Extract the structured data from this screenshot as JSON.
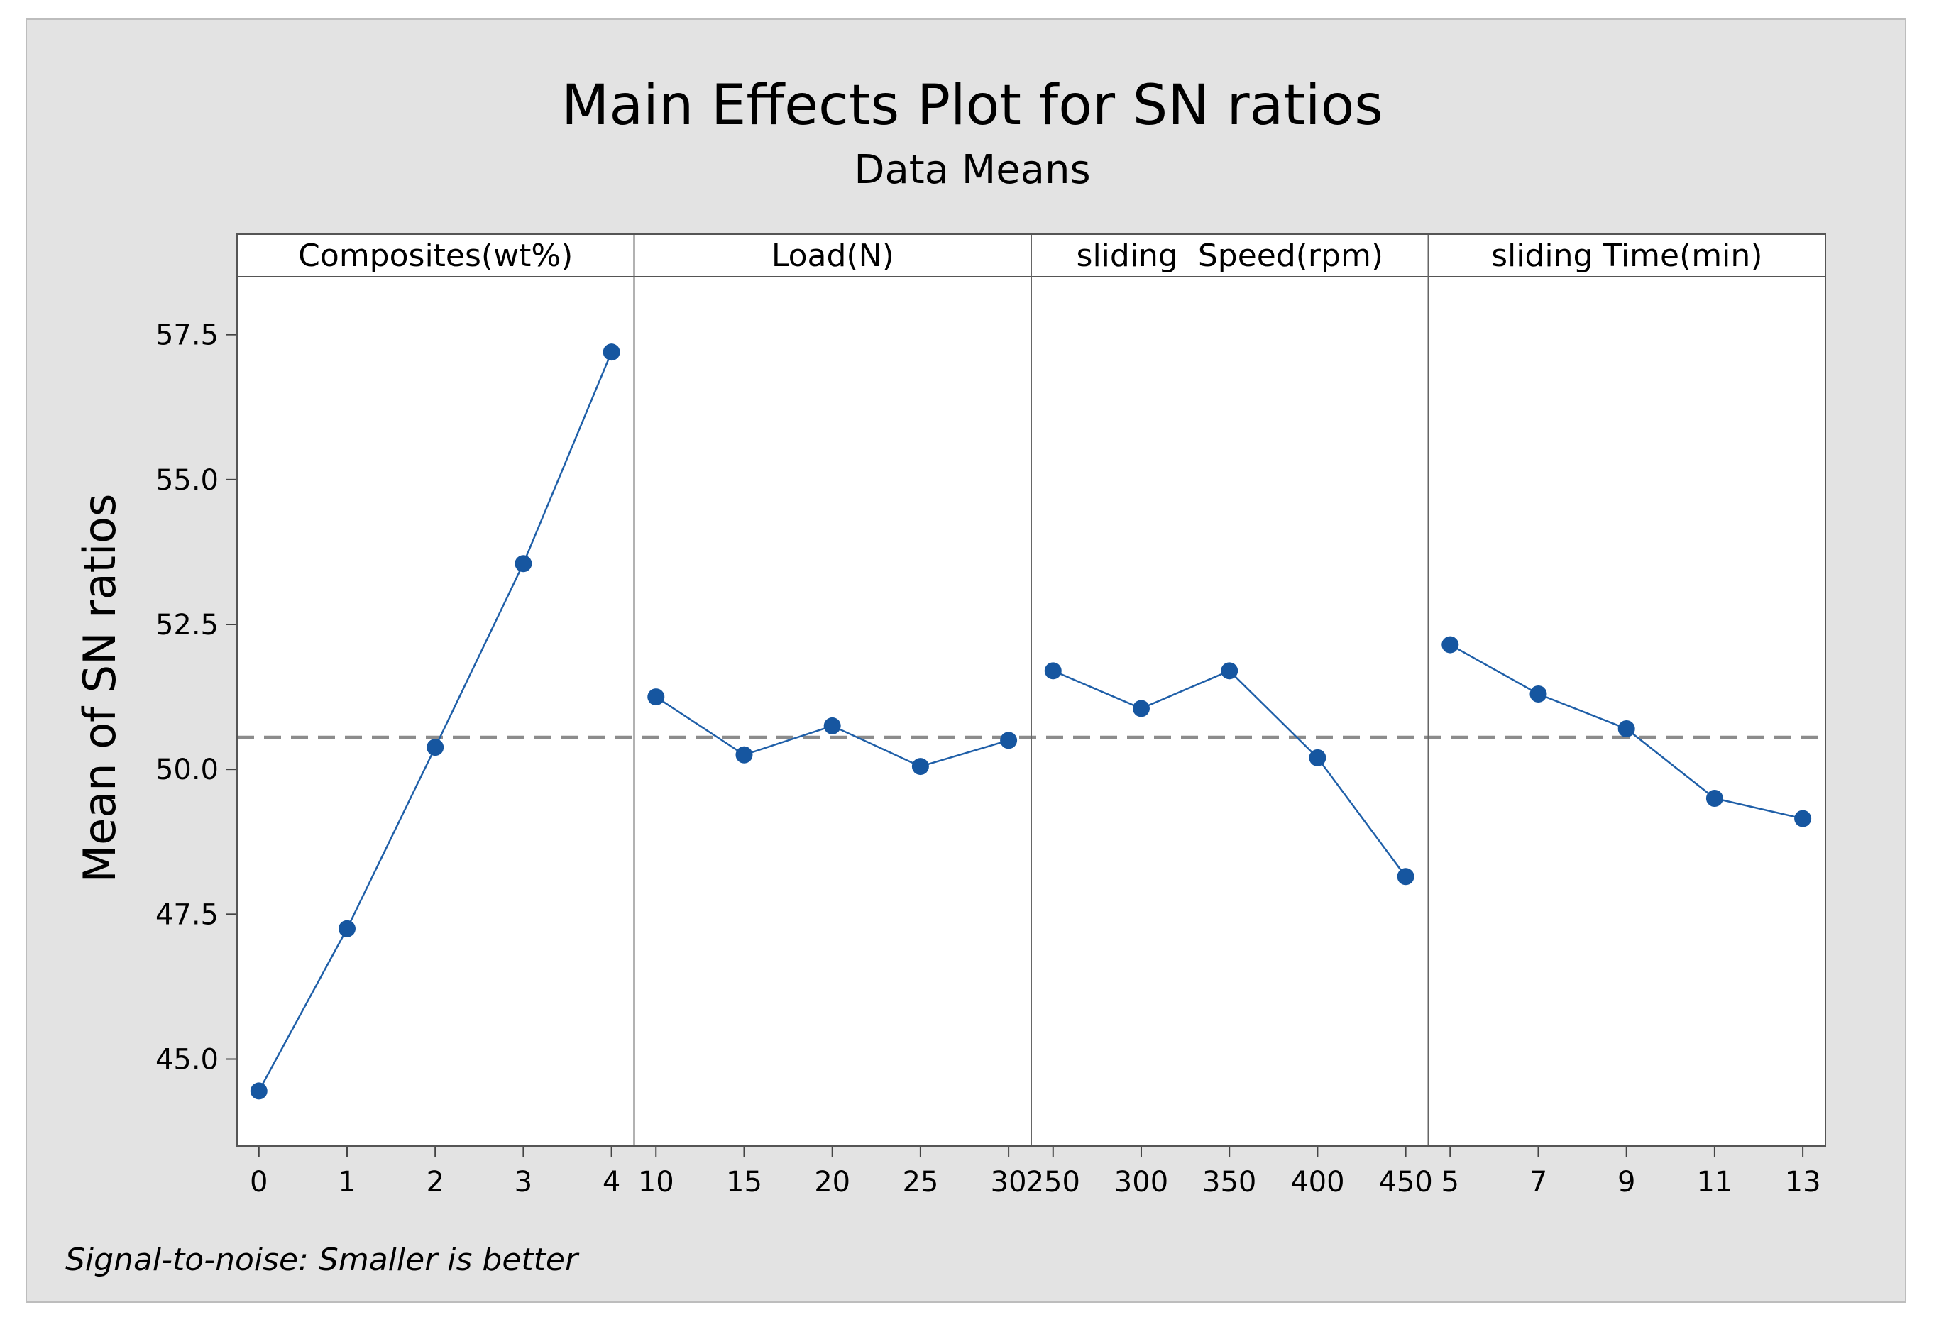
{
  "chart_data": {
    "type": "line",
    "title": "Main Effects Plot for SN ratios",
    "subtitle": "Data Means",
    "ylabel": "Mean of SN ratios",
    "ylim": [
      43.5,
      58.5
    ],
    "yticks": [
      "45.0",
      "47.5",
      "50.0",
      "52.5",
      "55.0",
      "57.5"
    ],
    "reference_line": 50.55,
    "footnote": "Signal-to-noise: Smaller is better",
    "colors": {
      "series": "#1f5fa8",
      "marker": "#1656a0",
      "reference": "#8c8c8c",
      "plot_bg": "#ffffff"
    },
    "panels": [
      {
        "label": "Composites(wt%)",
        "x": [
          "0",
          "1",
          "2",
          "3",
          "4"
        ],
        "values": [
          44.45,
          47.25,
          50.38,
          53.55,
          57.2
        ]
      },
      {
        "label": "Load(N)",
        "x": [
          "10",
          "15",
          "20",
          "25",
          "30"
        ],
        "values": [
          51.25,
          50.25,
          50.75,
          50.05,
          50.5
        ]
      },
      {
        "label": "sliding  Speed(rpm)",
        "x": [
          "250",
          "300",
          "350",
          "400",
          "450"
        ],
        "values": [
          51.7,
          51.05,
          51.7,
          50.2,
          48.15
        ]
      },
      {
        "label": "sliding Time(min)",
        "x": [
          "5",
          "7",
          "9",
          "11",
          "13"
        ],
        "values": [
          52.15,
          51.3,
          50.7,
          49.5,
          49.15
        ]
      }
    ]
  }
}
